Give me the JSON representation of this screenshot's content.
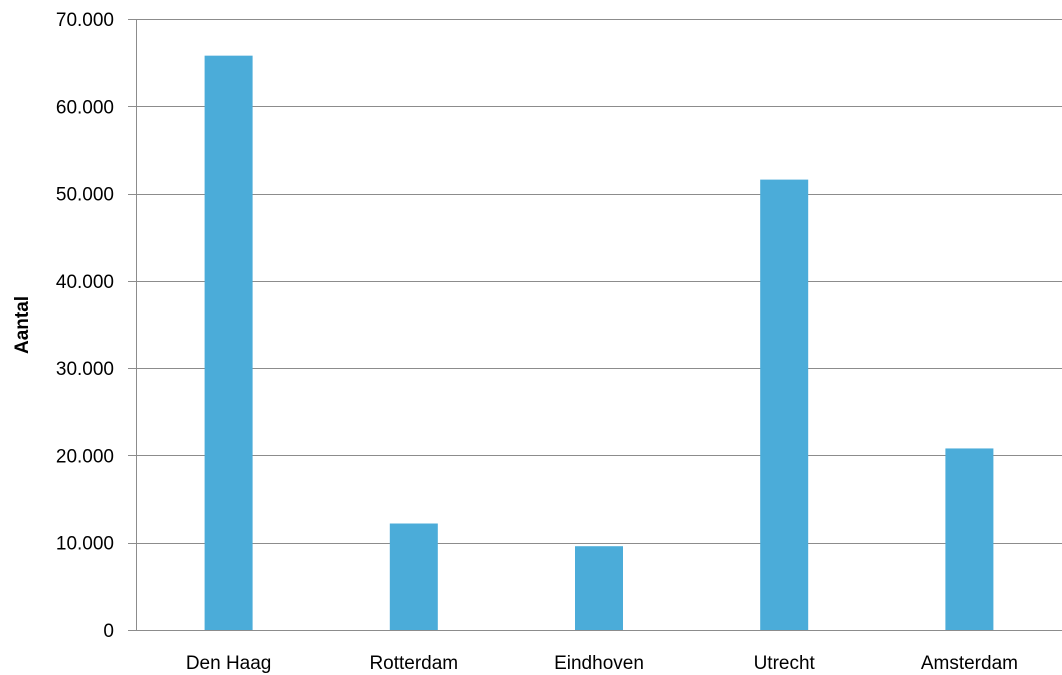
{
  "chart_data": {
    "type": "bar",
    "categories": [
      "Den Haag",
      "Rotterdam",
      "Eindhoven",
      "Utrecht",
      "Amsterdam"
    ],
    "values": [
      65800,
      12200,
      9600,
      51600,
      20800
    ],
    "title": "",
    "xlabel": "",
    "ylabel": "Aantal",
    "ylim": [
      0,
      70000
    ],
    "yticks": [
      0,
      10000,
      20000,
      30000,
      40000,
      50000,
      60000,
      70000
    ],
    "ytick_labels": [
      "0",
      "10.000",
      "20.000",
      "30.000",
      "40.000",
      "50.000",
      "60.000",
      "70.000"
    ],
    "grid": true,
    "legend": "none",
    "bar_color": "#4bacd9",
    "grid_color": "#8c8c8c"
  }
}
